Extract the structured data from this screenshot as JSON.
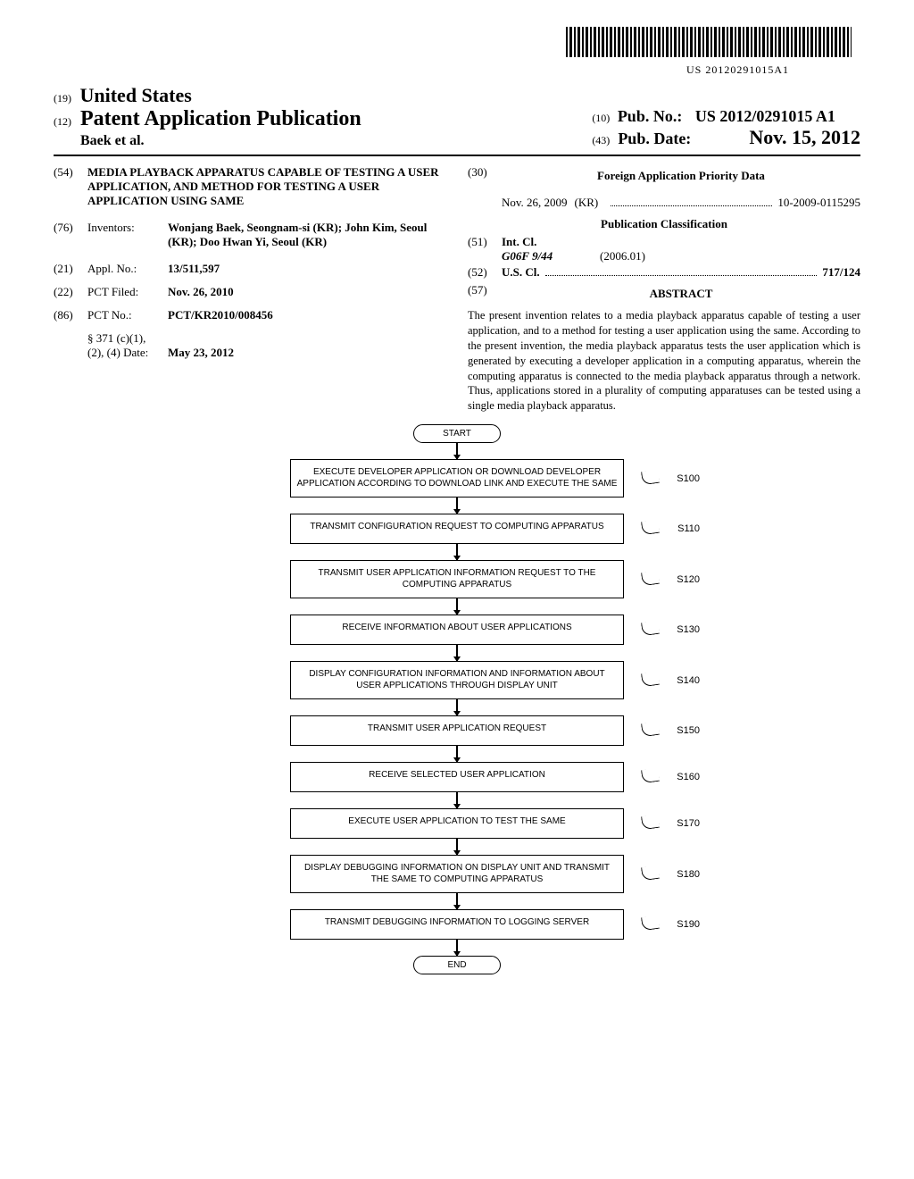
{
  "barcode_text": "US 20120291015A1",
  "header": {
    "code19": "(19)",
    "country": "United States",
    "code12": "(12)",
    "pub_type": "Patent Application Publication",
    "authors_short": "Baek et al.",
    "code10": "(10)",
    "pub_no_label": "Pub. No.:",
    "pub_no": "US 2012/0291015 A1",
    "code43": "(43)",
    "pub_date_label": "Pub. Date:",
    "pub_date": "Nov. 15, 2012"
  },
  "left_biblio": {
    "title_code": "(54)",
    "title": "MEDIA PLAYBACK APPARATUS CAPABLE OF TESTING A USER APPLICATION, AND METHOD FOR TESTING A USER APPLICATION USING SAME",
    "inventors_code": "(76)",
    "inventors_label": "Inventors:",
    "inventors": "Wonjang Baek, Seongnam-si (KR); John Kim, Seoul (KR); Doo Hwan Yi, Seoul (KR)",
    "appl_code": "(21)",
    "appl_label": "Appl. No.:",
    "appl_no": "13/511,597",
    "pct_filed_code": "(22)",
    "pct_filed_label": "PCT Filed:",
    "pct_filed": "Nov. 26, 2010",
    "pct_no_code": "(86)",
    "pct_no_label": "PCT No.:",
    "pct_no": "PCT/KR2010/008456",
    "s371_label": "§ 371 (c)(1),\n(2), (4) Date:",
    "s371_date": "May 23, 2012"
  },
  "right_biblio": {
    "foreign_code": "(30)",
    "foreign_heading": "Foreign Application Priority Data",
    "foreign_date": "Nov. 26, 2009",
    "foreign_country": "(KR)",
    "foreign_number": "10-2009-0115295",
    "pub_class_heading": "Publication Classification",
    "intcl_code": "(51)",
    "intcl_label": "Int. Cl.",
    "intcl_class": "G06F 9/44",
    "intcl_year": "(2006.01)",
    "uscl_code": "(52)",
    "uscl_label": "U.S. Cl.",
    "uscl_value": "717/124",
    "abstract_code": "(57)",
    "abstract_heading": "ABSTRACT",
    "abstract_text": "The present invention relates to a media playback apparatus capable of testing a user application, and to a method for testing a user application using the same. According to the present invention, the media playback apparatus tests the user application which is generated by executing a developer application in a computing apparatus, wherein the computing apparatus is connected to the media playback apparatus through a network. Thus, applications stored in a plurality of computing apparatuses can be tested using a single media playback apparatus."
  },
  "flowchart": {
    "start": "START",
    "end": "END",
    "steps": [
      {
        "label": "S100",
        "text": "EXECUTE DEVELOPER APPLICATION OR DOWNLOAD DEVELOPER APPLICATION ACCORDING TO DOWNLOAD LINK AND EXECUTE THE SAME"
      },
      {
        "label": "S110",
        "text": "TRANSMIT CONFIGURATION REQUEST TO COMPUTING APPARATUS"
      },
      {
        "label": "S120",
        "text": "TRANSMIT USER APPLICATION INFORMATION REQUEST TO THE COMPUTING APPARATUS"
      },
      {
        "label": "S130",
        "text": "RECEIVE INFORMATION ABOUT USER APPLICATIONS"
      },
      {
        "label": "S140",
        "text": "DISPLAY CONFIGURATION INFORMATION AND INFORMATION ABOUT USER APPLICATIONS THROUGH DISPLAY UNIT"
      },
      {
        "label": "S150",
        "text": "TRANSMIT USER APPLICATION REQUEST"
      },
      {
        "label": "S160",
        "text": "RECEIVE SELECTED USER APPLICATION"
      },
      {
        "label": "S170",
        "text": "EXECUTE USER APPLICATION TO TEST THE SAME"
      },
      {
        "label": "S180",
        "text": "DISPLAY DEBUGGING INFORMATION ON DISPLAY UNIT AND TRANSMIT THE SAME TO COMPUTING APPARATUS"
      },
      {
        "label": "S190",
        "text": "TRANSMIT DEBUGGING INFORMATION TO LOGGING SERVER"
      }
    ]
  }
}
